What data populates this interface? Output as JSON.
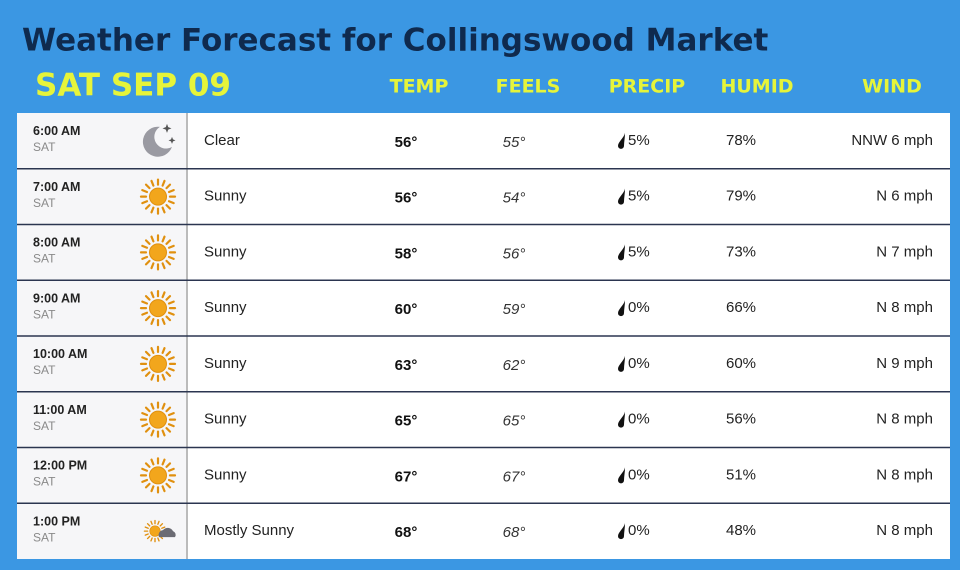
{
  "header": {
    "title": "Weather Forecast for Collingswood Market",
    "date": "SAT SEP 09"
  },
  "columns": [
    "TEMP",
    "FEELS",
    "PRECIP",
    "HUMID",
    "WIND"
  ],
  "rows": [
    {
      "time": "6:00 AM",
      "day": "SAT",
      "condition": "Clear",
      "temp": "56°",
      "feels": "55°",
      "precip": "5%",
      "humid": "78%",
      "wind": "NNW 6 mph"
    },
    {
      "time": "7:00 AM",
      "day": "SAT",
      "condition": "Sunny",
      "temp": "56°",
      "feels": "54°",
      "precip": "5%",
      "humid": "79%",
      "wind": "N 6 mph"
    },
    {
      "time": "8:00 AM",
      "day": "SAT",
      "condition": "Sunny",
      "temp": "58°",
      "feels": "56°",
      "precip": "5%",
      "humid": "73%",
      "wind": "N 7 mph"
    },
    {
      "time": "9:00 AM",
      "day": "SAT",
      "condition": "Sunny",
      "temp": "60°",
      "feels": "59°",
      "precip": "0%",
      "humid": "66%",
      "wind": "N 8 mph"
    },
    {
      "time": "10:00 AM",
      "day": "SAT",
      "condition": "Sunny",
      "temp": "63°",
      "feels": "62°",
      "precip": "0%",
      "humid": "60%",
      "wind": "N 9 mph"
    },
    {
      "time": "11:00 AM",
      "day": "SAT",
      "condition": "Sunny",
      "temp": "65°",
      "feels": "65°",
      "precip": "0%",
      "humid": "56%",
      "wind": "N 8 mph"
    },
    {
      "time": "12:00 PM",
      "day": "SAT",
      "condition": "Sunny",
      "temp": "67°",
      "feels": "67°",
      "precip": "0%",
      "humid": "51%",
      "wind": "N 8 mph"
    },
    {
      "time": "1:00 PM",
      "day": "SAT",
      "condition": "Mostly Sunny",
      "temp": "68°",
      "feels": "68°",
      "precip": "0%",
      "humid": "48%",
      "wind": "N 8 mph"
    }
  ]
}
